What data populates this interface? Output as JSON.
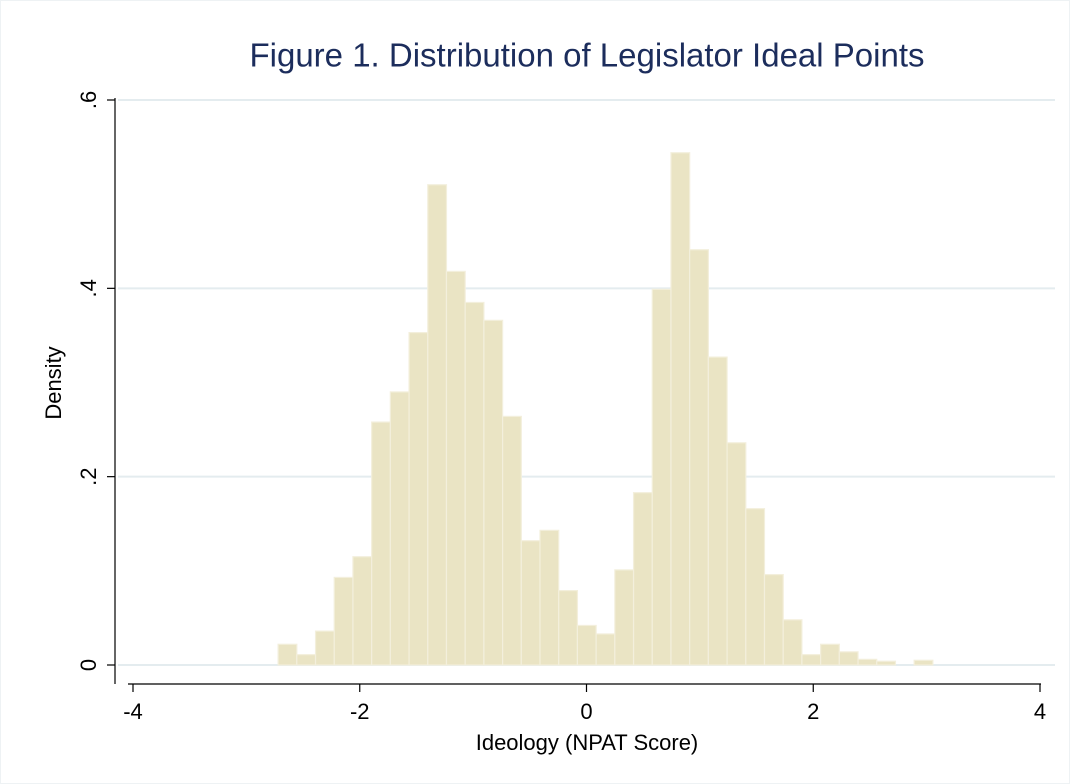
{
  "chart_data": {
    "type": "histogram",
    "title": "Figure 1. Distribution of Legislator Ideal Points",
    "x_label": "Ideology (NPAT Score)",
    "y_label": "Density",
    "color": "#eae4c4",
    "bins": [
      -2.72,
      -2.555,
      -2.39,
      -2.225,
      -2.06,
      -1.895,
      -1.73,
      -1.565,
      -1.4,
      -1.235,
      -1.07,
      -0.905,
      -0.74,
      -0.575,
      -0.41,
      -0.245,
      -0.08,
      0.085,
      0.25,
      0.415,
      0.58,
      0.745,
      0.91,
      1.075,
      1.24,
      1.405,
      1.57,
      1.735,
      1.9,
      2.065,
      2.23,
      2.395,
      2.56,
      2.725,
      2.89,
      3.055
    ],
    "values": [
      0.022,
      0.011,
      0.036,
      0.093,
      0.115,
      0.258,
      0.29,
      0.353,
      0.51,
      0.418,
      0.385,
      0.366,
      0.264,
      0.132,
      0.143,
      0.079,
      0.042,
      0.033,
      0.101,
      0.183,
      0.399,
      0.544,
      0.441,
      0.327,
      0.236,
      0.166,
      0.096,
      0.048,
      0.011,
      0.022,
      0.014,
      0.006,
      0.004,
      0,
      0.005
    ],
    "xlim": [
      -4,
      4
    ],
    "xticks": [
      -4,
      -2,
      0,
      2,
      4
    ],
    "ylim": [
      0,
      0.6
    ],
    "yticks": [
      0,
      {
        "value": 0.2,
        "label": ".2"
      },
      {
        "value": 0.4,
        "label": ".4"
      },
      {
        "value": 0.6,
        "label": ".6"
      }
    ],
    "grid": true
  }
}
